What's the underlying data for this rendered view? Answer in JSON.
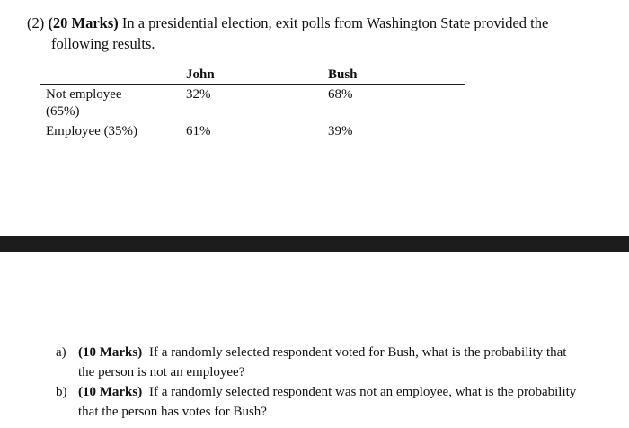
{
  "question": {
    "number": "(2)",
    "marks": "(20 Marks)",
    "text_line1": "In a presidential election, exit polls from Washington State provided the",
    "text_line2": "following results."
  },
  "table": {
    "columns": [
      "John",
      "Bush"
    ],
    "rows": [
      {
        "label_line1": "Not employee",
        "label_line2": "(65%)",
        "john": "32%",
        "bush": "68%"
      },
      {
        "label_line1": "Employee (35%)",
        "label_line2": "",
        "john": "61%",
        "bush": "39%"
      }
    ]
  },
  "parts": [
    {
      "label": "a)",
      "marks": "(10 Marks)",
      "text_line1": "If a randomly selected respondent voted for Bush, what is the probability that",
      "text_line2": "the person is not an employee?"
    },
    {
      "label": "b)",
      "marks": "(10 Marks)",
      "text_line1": "If a randomly selected respondent was not an employee, what is the probability",
      "text_line2": "that the person has votes for Bush?"
    }
  ]
}
